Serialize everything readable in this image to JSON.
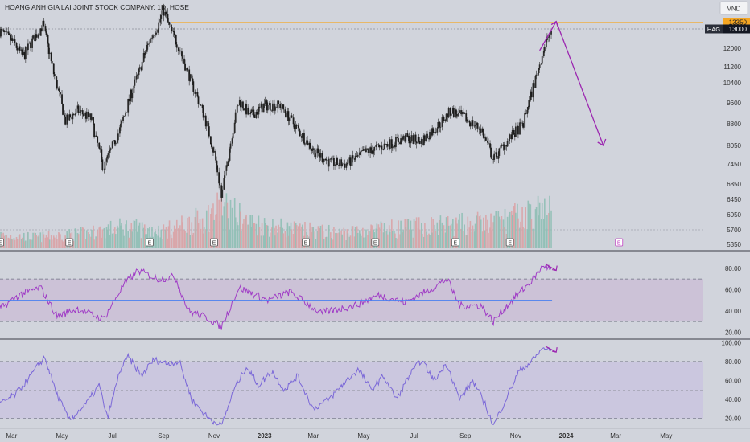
{
  "header": {
    "title": "HOANG ANH GIA LAI JOINT STOCK COMPANY, 1D, HOSE",
    "currency": "VND"
  },
  "colors": {
    "background": "#d1d4dc",
    "candle": "#2a2a2a",
    "volume_up": "#8fbfb5",
    "volume_down": "#d9a3a6",
    "resistance": "#f5a623",
    "arrow": "#9c27b0",
    "rsi_line": "#a03cc6",
    "rsi_band": "#c9bcd6",
    "rsi_mid": "#4a7ff0",
    "stoch_line": "#7b68d8",
    "stoch_band": "#c8c3e0",
    "tag_dark": "#2a2e39"
  },
  "icons": {
    "earnings": "earnings-marker-icon"
  },
  "chart_data": [
    {
      "type": "candlestick",
      "title": "HOANG ANH GIA LAI JOINT STOCK COMPANY, 1D, HOSE",
      "ticker": "HAG",
      "last_price": "13000",
      "resistance_level": "13350",
      "ylim": [
        5200,
        15000
      ],
      "y_ticks": [
        "12000",
        "11200",
        "10400",
        "9600",
        "8800",
        "8050",
        "7450",
        "6850",
        "6450",
        "6050",
        "5700",
        "5350"
      ],
      "x_ticks": [
        "Mar",
        "May",
        "Jul",
        "Sep",
        "Nov",
        "2023",
        "Mar",
        "May",
        "Jul",
        "Sep",
        "Nov",
        "2024",
        "Mar",
        "May"
      ],
      "x_range": [
        "2022-02-15",
        "2024-06-15"
      ],
      "price_path": [
        [
          "2022-02-15",
          12900
        ],
        [
          "2022-03-01",
          12400
        ],
        [
          "2022-03-15",
          11600
        ],
        [
          "2022-04-01",
          12800
        ],
        [
          "2022-04-08",
          13200
        ],
        [
          "2022-04-20",
          11000
        ],
        [
          "2022-05-05",
          8900
        ],
        [
          "2022-05-20",
          9300
        ],
        [
          "2022-06-05",
          9000
        ],
        [
          "2022-06-20",
          7300
        ],
        [
          "2022-07-10",
          8600
        ],
        [
          "2022-08-01",
          10800
        ],
        [
          "2022-08-15",
          12400
        ],
        [
          "2022-08-25",
          13200
        ],
        [
          "2022-09-01",
          13900
        ],
        [
          "2022-09-10",
          12900
        ],
        [
          "2022-09-20",
          12000
        ],
        [
          "2022-10-05",
          10400
        ],
        [
          "2022-10-20",
          9100
        ],
        [
          "2022-11-02",
          7700
        ],
        [
          "2022-11-10",
          6500
        ],
        [
          "2022-11-20",
          8000
        ],
        [
          "2022-12-01",
          9700
        ],
        [
          "2022-12-15",
          9100
        ],
        [
          "2023-01-01",
          9500
        ],
        [
          "2023-01-20",
          9500
        ],
        [
          "2023-02-10",
          8600
        ],
        [
          "2023-03-01",
          7900
        ],
        [
          "2023-03-20",
          7500
        ],
        [
          "2023-04-10",
          7450
        ],
        [
          "2023-05-01",
          7800
        ],
        [
          "2023-06-01",
          8100
        ],
        [
          "2023-06-20",
          8300
        ],
        [
          "2023-07-10",
          8200
        ],
        [
          "2023-08-01",
          8800
        ],
        [
          "2023-08-15",
          9300
        ],
        [
          "2023-09-01",
          9000
        ],
        [
          "2023-09-20",
          8600
        ],
        [
          "2023-10-05",
          7600
        ],
        [
          "2023-10-25",
          8300
        ],
        [
          "2023-11-10",
          8800
        ],
        [
          "2023-11-25",
          10600
        ],
        [
          "2023-12-05",
          12000
        ],
        [
          "2023-12-15",
          13000
        ]
      ],
      "volume_profile": [
        [
          "2022-02-15",
          0.3
        ],
        [
          "2022-04-01",
          0.25
        ],
        [
          "2022-06-01",
          0.35
        ],
        [
          "2022-07-15",
          0.5
        ],
        [
          "2022-09-01",
          0.4
        ],
        [
          "2022-10-20",
          0.7
        ],
        [
          "2022-11-10",
          1.0
        ],
        [
          "2022-12-15",
          0.6
        ],
        [
          "2023-02-01",
          0.45
        ],
        [
          "2023-04-01",
          0.35
        ],
        [
          "2023-06-01",
          0.45
        ],
        [
          "2023-08-15",
          0.55
        ],
        [
          "2023-10-01",
          0.6
        ],
        [
          "2023-11-25",
          0.85
        ],
        [
          "2023-12-15",
          0.9
        ]
      ],
      "earnings_dates": [
        "2022-02-15",
        "2022-05-10",
        "2022-08-15",
        "2022-11-01",
        "2023-02-20",
        "2023-05-15",
        "2023-08-20",
        "2023-10-25",
        "2024-03-05"
      ],
      "projection": {
        "up_start": [
          "2023-11-30",
          11900
        ],
        "up_end": [
          "2023-12-20",
          13400
        ],
        "down_end": [
          "2024-02-15",
          8050
        ]
      }
    },
    {
      "type": "line",
      "name": "rsi",
      "ylim": [
        15,
        92
      ],
      "y_ticks": [
        "80.00",
        "60.00",
        "40.00",
        "20.00"
      ],
      "band": [
        30,
        70
      ],
      "midline": 50,
      "path": [
        [
          "2022-02-15",
          42
        ],
        [
          "2022-03-10",
          55
        ],
        [
          "2022-04-05",
          62
        ],
        [
          "2022-04-25",
          35
        ],
        [
          "2022-05-20",
          42
        ],
        [
          "2022-06-20",
          32
        ],
        [
          "2022-07-15",
          65
        ],
        [
          "2022-08-01",
          78
        ],
        [
          "2022-08-25",
          70
        ],
        [
          "2022-09-15",
          72
        ],
        [
          "2022-10-01",
          40
        ],
        [
          "2022-10-25",
          33
        ],
        [
          "2022-11-10",
          25
        ],
        [
          "2022-12-01",
          62
        ],
        [
          "2023-01-05",
          50
        ],
        [
          "2023-02-01",
          58
        ],
        [
          "2023-03-10",
          38
        ],
        [
          "2023-04-20",
          45
        ],
        [
          "2023-05-20",
          55
        ],
        [
          "2023-06-20",
          48
        ],
        [
          "2023-07-20",
          60
        ],
        [
          "2023-08-10",
          70
        ],
        [
          "2023-08-25",
          45
        ],
        [
          "2023-09-20",
          45
        ],
        [
          "2023-10-05",
          30
        ],
        [
          "2023-10-25",
          48
        ],
        [
          "2023-11-20",
          68
        ],
        [
          "2023-12-05",
          83
        ],
        [
          "2023-12-15",
          78
        ]
      ],
      "midline_end": "2023-12-15",
      "arrow_end": [
        "2023-12-20",
        78
      ]
    },
    {
      "type": "line",
      "name": "stochastic-rsi",
      "ylim": [
        12,
        102
      ],
      "y_ticks": [
        "100.00",
        "80.00",
        "60.00",
        "40.00",
        "20.00"
      ],
      "band": [
        20,
        80
      ],
      "midline": 50,
      "path": [
        [
          "2022-02-15",
          35
        ],
        [
          "2022-03-05",
          45
        ],
        [
          "2022-03-20",
          60
        ],
        [
          "2022-04-10",
          85
        ],
        [
          "2022-04-25",
          45
        ],
        [
          "2022-05-10",
          18
        ],
        [
          "2022-05-30",
          35
        ],
        [
          "2022-06-15",
          55
        ],
        [
          "2022-06-25",
          20
        ],
        [
          "2022-07-10",
          70
        ],
        [
          "2022-07-20",
          85
        ],
        [
          "2022-08-05",
          65
        ],
        [
          "2022-08-20",
          82
        ],
        [
          "2022-09-05",
          78
        ],
        [
          "2022-09-20",
          80
        ],
        [
          "2022-10-05",
          40
        ],
        [
          "2022-10-25",
          20
        ],
        [
          "2022-11-10",
          12
        ],
        [
          "2022-11-25",
          50
        ],
        [
          "2022-12-10",
          75
        ],
        [
          "2022-12-25",
          55
        ],
        [
          "2023-01-10",
          70
        ],
        [
          "2023-01-25",
          50
        ],
        [
          "2023-02-10",
          65
        ],
        [
          "2023-03-01",
          30
        ],
        [
          "2023-03-20",
          40
        ],
        [
          "2023-04-10",
          60
        ],
        [
          "2023-04-25",
          72
        ],
        [
          "2023-05-10",
          50
        ],
        [
          "2023-05-25",
          65
        ],
        [
          "2023-06-10",
          40
        ],
        [
          "2023-06-25",
          65
        ],
        [
          "2023-07-10",
          82
        ],
        [
          "2023-07-25",
          60
        ],
        [
          "2023-08-10",
          78
        ],
        [
          "2023-08-25",
          40
        ],
        [
          "2023-09-10",
          60
        ],
        [
          "2023-09-25",
          35
        ],
        [
          "2023-10-05",
          12
        ],
        [
          "2023-10-20",
          40
        ],
        [
          "2023-11-05",
          70
        ],
        [
          "2023-11-20",
          80
        ],
        [
          "2023-12-05",
          95
        ],
        [
          "2023-12-15",
          90
        ]
      ],
      "arrow_end": [
        "2023-12-20",
        90
      ]
    }
  ]
}
